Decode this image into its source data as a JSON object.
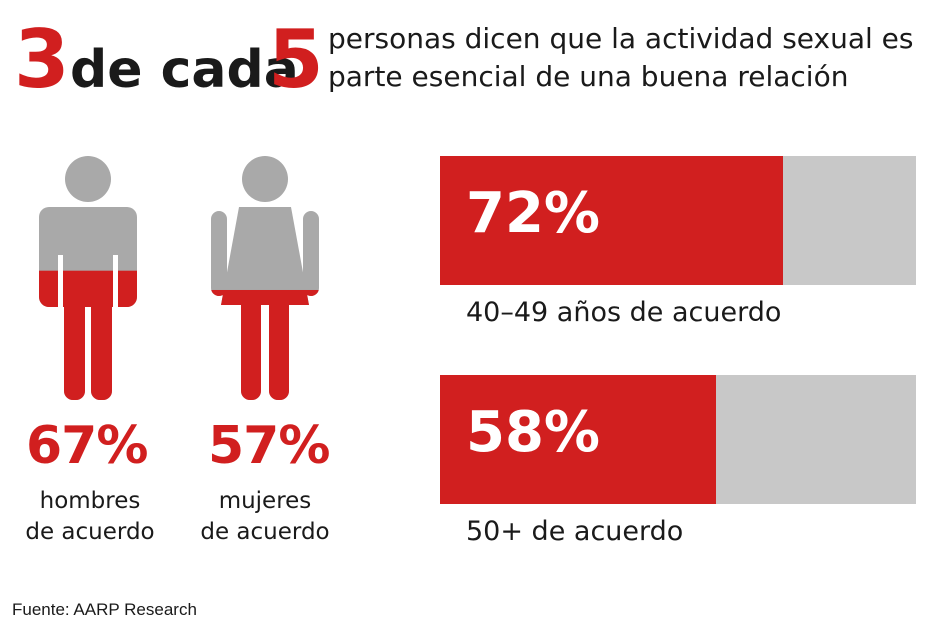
{
  "headline": {
    "num1": "3",
    "middle": "de cada",
    "num2": "5",
    "line1": "personas dicen que la actividad sexual es",
    "line2": "parte esencial de una buena relación"
  },
  "colors": {
    "accent": "#d11f1f",
    "neutral": "#c8c8c8",
    "figure_gray": "#a9a9a9"
  },
  "chart_data": [
    {
      "type": "pictogram",
      "categories": [
        "hombres de acuerdo",
        "mujeres de acuerdo"
      ],
      "values": [
        67,
        57
      ],
      "unit": "%",
      "labels": [
        "67%",
        "57%"
      ],
      "captions": [
        [
          "hombres",
          "de acuerdo"
        ],
        [
          "mujeres",
          "de acuerdo"
        ]
      ],
      "icons": [
        "man-icon",
        "woman-icon"
      ]
    },
    {
      "type": "bar",
      "orientation": "horizontal",
      "categories": [
        "40–49 años de acuerdo",
        "50+ de acuerdo"
      ],
      "values": [
        72,
        58
      ],
      "labels": [
        "72%",
        "58%"
      ],
      "xlim": [
        0,
        100
      ]
    }
  ],
  "source": "Fuente: AARP Research"
}
